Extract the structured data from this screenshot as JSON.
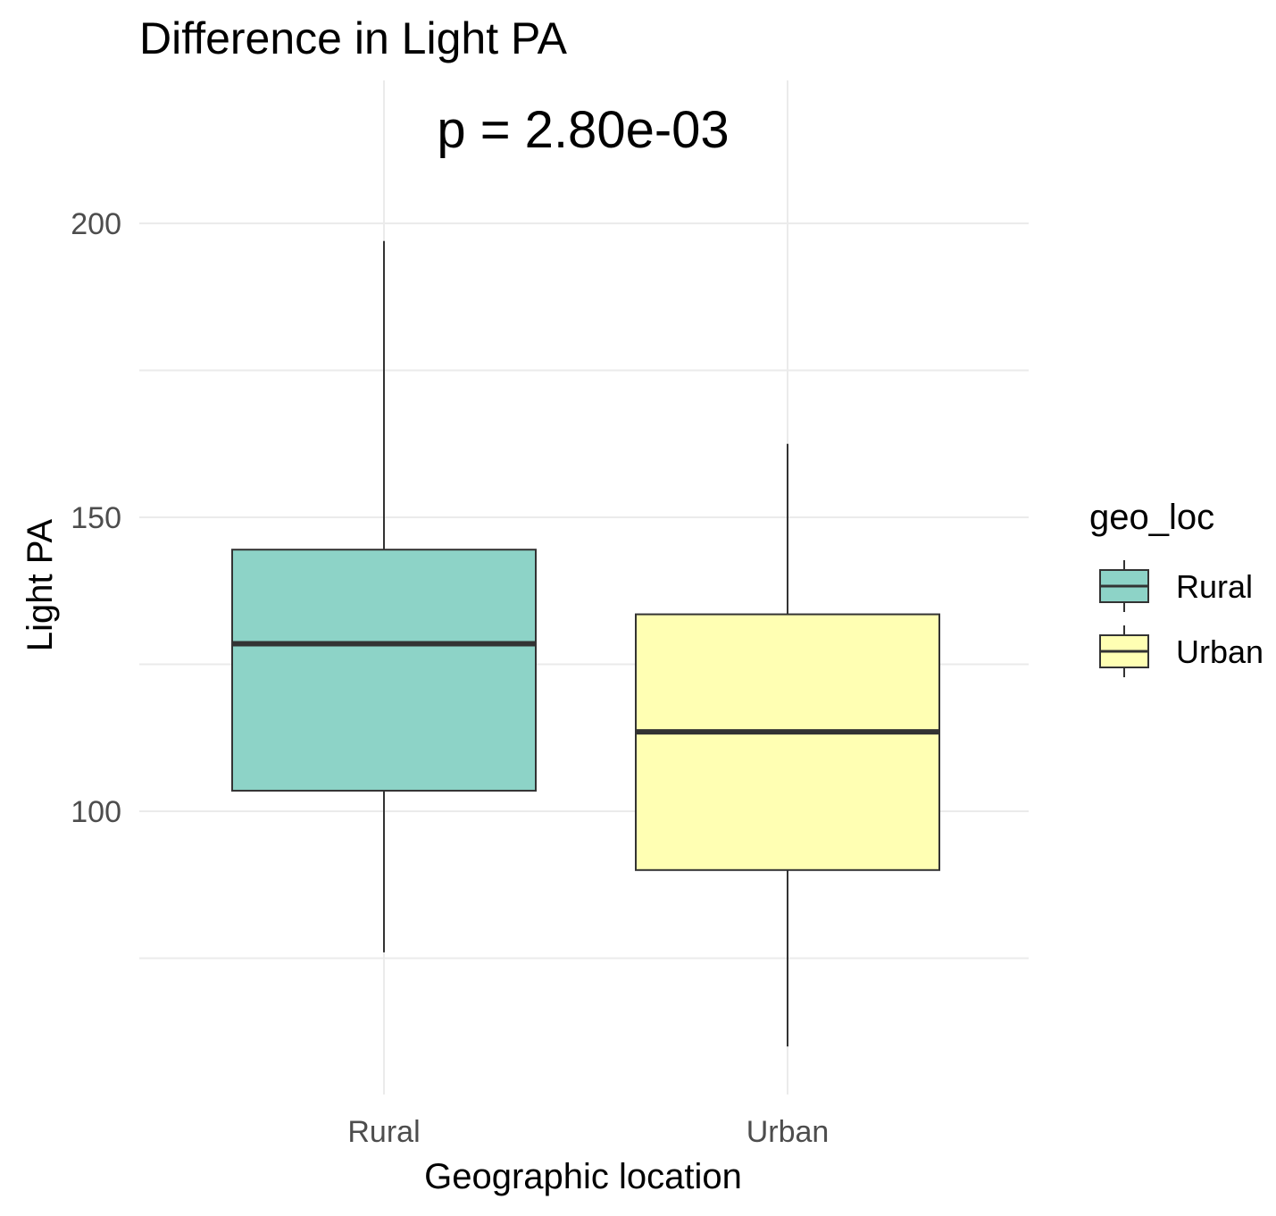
{
  "chart_data": {
    "type": "box",
    "title": "Difference in Light PA",
    "annotation": "p = 2.80e-03",
    "xlabel": "Geographic location",
    "ylabel": "Light PA",
    "categories": [
      "Rural",
      "Urban"
    ],
    "yticks": [
      "100",
      "150",
      "200"
    ],
    "ylim": [
      53,
      227
    ],
    "grid": true,
    "legend": {
      "title": "geo_loc",
      "position": "right",
      "entries": [
        "Rural",
        "Urban"
      ]
    },
    "colors": {
      "Rural": "#8dd3c7",
      "Urban": "#ffffb3"
    },
    "boxes": [
      {
        "category": "Rural",
        "whisker_low": 76,
        "q1": 103.5,
        "median": 128.5,
        "q3": 144.5,
        "whisker_high": 197
      },
      {
        "category": "Urban",
        "whisker_low": 60,
        "q1": 90,
        "median": 113.5,
        "q3": 133.5,
        "whisker_high": 162.5
      }
    ]
  }
}
